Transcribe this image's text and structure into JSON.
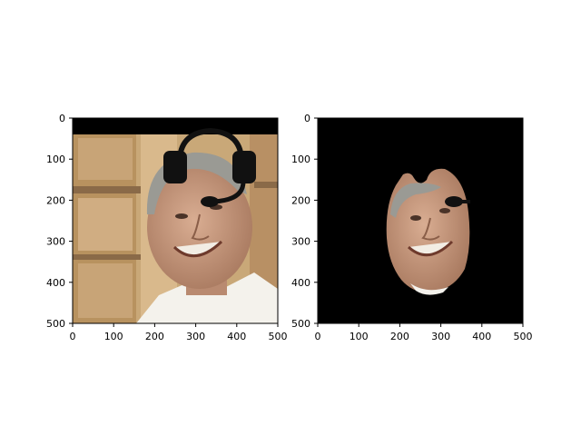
{
  "chart_data": [
    {
      "type": "image",
      "xlim": [
        0,
        500
      ],
      "ylim": [
        500,
        0
      ],
      "xticks": [
        "0",
        "100",
        "200",
        "300",
        "400",
        "500"
      ],
      "yticks": [
        "0",
        "100",
        "200",
        "300",
        "400",
        "500"
      ],
      "content": "photo of smiling man with headset overlay",
      "background_color": "#c9a878"
    },
    {
      "type": "image",
      "xlim": [
        0,
        500
      ],
      "ylim": [
        500,
        0
      ],
      "xticks": [
        "0",
        "100",
        "200",
        "300",
        "400",
        "500"
      ],
      "yticks": [
        "0",
        "100",
        "200",
        "300",
        "400",
        "500"
      ],
      "content": "segmented face on black background with headset microphone fragment",
      "background_color": "#000000"
    }
  ],
  "colors": {
    "skin": "#c89a80",
    "hair": "#9a9a94",
    "shirt": "#f4f2ec",
    "headset": "#111111",
    "wall": "#c9a878",
    "wood": "#8a6a48"
  }
}
